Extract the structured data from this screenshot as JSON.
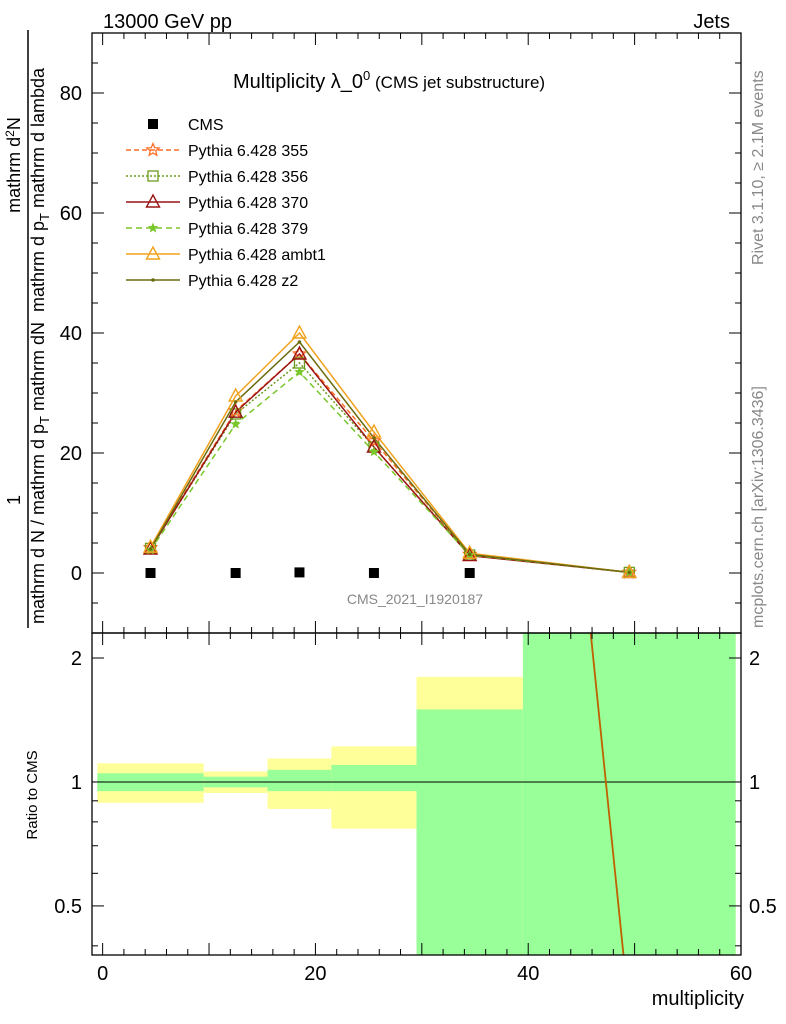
{
  "header": {
    "left": "13000 GeV pp",
    "right": "Jets"
  },
  "side_labels": {
    "rivet": "Rivet 3.1.10, ≥ 2.1M events",
    "mcplots": "mcplots.cern.ch [arXiv:1306.3436]"
  },
  "colors": {
    "band_stat": "#99ff99",
    "band_total": "#ffff99"
  },
  "chart_data": [
    {
      "type": "line",
      "title": "Multiplicity λ_0",
      "title_sup": "0",
      "subtitle": "(CMS jet substructure)",
      "watermark": "CMS_2021_I1920187",
      "ylabel": "1/mathrm d N / mathrm d p_T mathrm d^2N/mathrm d p_T mathrm d lambda",
      "ylabel_parts": {
        "num": "1",
        "den_a": "mathrm d N / mathrm d p",
        "den_sub": "T",
        "frac_num_a": "mathrm d",
        "frac_num_sup": "2",
        "frac_num_b": "N",
        "frac_den_a": "mathrm d p",
        "frac_den_sub": "T",
        "frac_den_b": "mathrm d lambda"
      },
      "xlim": [
        -1,
        60
      ],
      "ylim": [
        -10,
        90
      ],
      "yticks": [
        0,
        20,
        40,
        60,
        80
      ],
      "x": [
        4.5,
        12.5,
        18.5,
        25.5,
        34.5,
        49.5
      ],
      "series": [
        {
          "name": "CMS",
          "color": "#000000",
          "marker": "square",
          "dash": "none",
          "values": [
            0,
            0,
            0.1,
            0,
            0,
            null
          ]
        },
        {
          "name": "Pythia 6.428 355",
          "color": "#ff6f28",
          "marker": "star",
          "dash": "5,3",
          "values": [
            4.2,
            27.0,
            36.5,
            22.0,
            3.1,
            0.1
          ]
        },
        {
          "name": "Pythia 6.428 356",
          "color": "#6b9a1f",
          "marker": "square-open",
          "dash": "2,2",
          "values": [
            4.1,
            26.5,
            35.0,
            21.0,
            3.0,
            0.1
          ]
        },
        {
          "name": "Pythia 6.428 370",
          "color": "#9a1414",
          "marker": "triangle-open",
          "dash": "none",
          "values": [
            4.0,
            26.8,
            36.5,
            21.0,
            2.9,
            0.1
          ]
        },
        {
          "name": "Pythia 6.428 379",
          "color": "#7ac72c",
          "marker": "star-filled",
          "dash": "6,4",
          "values": [
            3.8,
            24.8,
            33.5,
            20.2,
            3.0,
            0.1
          ]
        },
        {
          "name": "Pythia 6.428 ambt1",
          "color": "#f2a21c",
          "marker": "triangle-open",
          "dash": "none",
          "values": [
            4.3,
            29.5,
            40.0,
            23.5,
            3.3,
            0.1
          ]
        },
        {
          "name": "Pythia 6.428 z2",
          "color": "#6b6b0f",
          "marker": "dot",
          "dash": "none",
          "values": [
            4.0,
            28.5,
            38.5,
            22.5,
            3.1,
            0.1
          ]
        }
      ]
    },
    {
      "type": "area",
      "ylabel": "Ratio to CMS",
      "xlabel": "multiplicity",
      "xlim": [
        -1,
        60
      ],
      "ylim": [
        0.38,
        2.3
      ],
      "yticks": [
        0.5,
        1,
        2
      ],
      "xticks": [
        0,
        20,
        40,
        60
      ],
      "reference": 1,
      "bands": [
        {
          "x0": -0.5,
          "x1": 9.5,
          "stat": [
            0.95,
            1.05
          ],
          "total": [
            0.89,
            1.11
          ]
        },
        {
          "x0": 9.5,
          "x1": 15.5,
          "stat": [
            0.97,
            1.03
          ],
          "total": [
            0.94,
            1.06
          ]
        },
        {
          "x0": 15.5,
          "x1": 21.5,
          "stat": [
            0.95,
            1.07
          ],
          "total": [
            0.86,
            1.14
          ]
        },
        {
          "x0": 21.5,
          "x1": 29.5,
          "stat": [
            0.95,
            1.1
          ],
          "total": [
            0.77,
            1.22
          ]
        },
        {
          "x0": 29.5,
          "x1": 39.5,
          "stat": [
            0.3,
            1.5
          ],
          "total": [
            0.3,
            1.8
          ]
        },
        {
          "x0": 39.5,
          "x1": 59.5,
          "stat": [
            0.3,
            3.0
          ],
          "total": [
            0.3,
            3.0
          ]
        }
      ],
      "lines": [
        {
          "color": "#c06000",
          "x": [
            45.8,
            49.0
          ],
          "values": [
            2.4,
            0.37
          ]
        }
      ]
    }
  ]
}
